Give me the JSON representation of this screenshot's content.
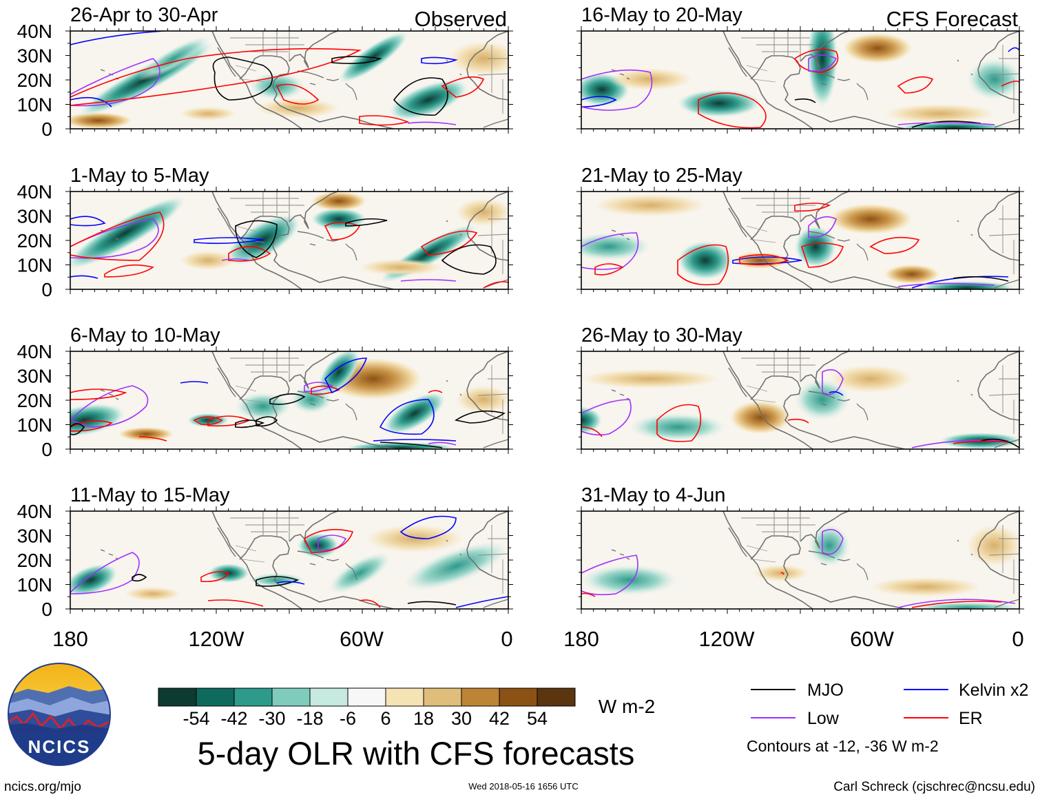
{
  "columns": {
    "observed": "Observed",
    "forecast": "CFS Forecast"
  },
  "panels": [
    {
      "id": "p1",
      "period": "26-Apr to 30-Apr",
      "kind": "observed"
    },
    {
      "id": "p2",
      "period": "1-May to 5-May",
      "kind": "observed"
    },
    {
      "id": "p3",
      "period": "6-May to 10-May",
      "kind": "observed"
    },
    {
      "id": "p4",
      "period": "11-May to 15-May",
      "kind": "observed"
    },
    {
      "id": "p5",
      "period": "16-May to 20-May",
      "kind": "forecast"
    },
    {
      "id": "p6",
      "period": "21-May to 25-May",
      "kind": "forecast"
    },
    {
      "id": "p7",
      "period": "26-May to 30-May",
      "kind": "forecast"
    },
    {
      "id": "p8",
      "period": "31-May to 4-Jun",
      "kind": "forecast"
    }
  ],
  "axes": {
    "lat_labels": [
      "40N",
      "30N",
      "20N",
      "10N",
      "0"
    ],
    "lon_labels": [
      "180",
      "120W",
      "60W",
      "0"
    ]
  },
  "colorbar": {
    "tick_labels": [
      "-54",
      "-42",
      "-30",
      "-18",
      "-6",
      "6",
      "18",
      "30",
      "42",
      "54"
    ],
    "colors": [
      "#0d3b34",
      "#0f6a5e",
      "#2e9a8b",
      "#7fcbbc",
      "#c6e9e0",
      "#f7f7f7",
      "#f6e3b4",
      "#dfbd7a",
      "#bd8436",
      "#8c5215",
      "#5a3510"
    ],
    "units": "W m-2"
  },
  "title": "5-day OLR with CFS forecasts",
  "legend": {
    "items": [
      {
        "label": "MJO",
        "color": "#000000"
      },
      {
        "label": "Kelvin x2",
        "color": "#0000ff"
      },
      {
        "label": "Low",
        "color": "#a030ff"
      },
      {
        "label": "ER",
        "color": "#ff0000"
      }
    ],
    "note": "Contours at -12, -36 W m-2"
  },
  "logo": {
    "text": "NCICS"
  },
  "footer": {
    "url": "ncics.org/mjo",
    "timestamp": "Wed 2018-05-16 1656 UTC",
    "credit": "Carl Schreck (cjschrec@ncsu.edu)"
  }
}
